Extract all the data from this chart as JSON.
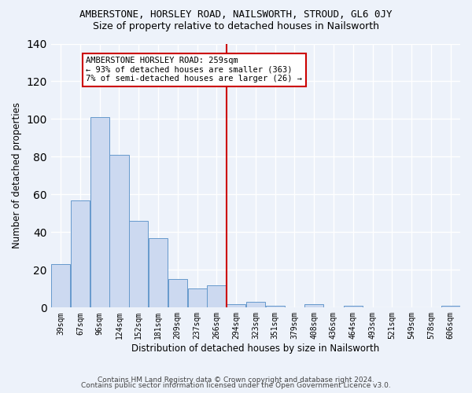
{
  "title": "AMBERSTONE, HORSLEY ROAD, NAILSWORTH, STROUD, GL6 0JY",
  "subtitle": "Size of property relative to detached houses in Nailsworth",
  "xlabel": "Distribution of detached houses by size in Nailsworth",
  "ylabel": "Number of detached properties",
  "bar_labels": [
    "39sqm",
    "67sqm",
    "96sqm",
    "124sqm",
    "152sqm",
    "181sqm",
    "209sqm",
    "237sqm",
    "266sqm",
    "294sqm",
    "323sqm",
    "351sqm",
    "379sqm",
    "408sqm",
    "436sqm",
    "464sqm",
    "493sqm",
    "521sqm",
    "549sqm",
    "578sqm",
    "606sqm"
  ],
  "bar_values": [
    23,
    57,
    101,
    81,
    46,
    37,
    15,
    10,
    12,
    2,
    3,
    1,
    0,
    2,
    0,
    1,
    0,
    0,
    0,
    0,
    1
  ],
  "bar_color": "#ccd9f0",
  "bar_edge_color": "#6699cc",
  "vline_x_index": 8,
  "vline_color": "#cc0000",
  "annotation_text": "AMBERSTONE HORSLEY ROAD: 259sqm\n← 93% of detached houses are smaller (363)\n7% of semi-detached houses are larger (26) →",
  "annotation_box_color": "#ffffff",
  "annotation_box_edge": "#cc0000",
  "ylim": [
    0,
    140
  ],
  "yticks": [
    0,
    20,
    40,
    60,
    80,
    100,
    120,
    140
  ],
  "footer_line1": "Contains HM Land Registry data © Crown copyright and database right 2024.",
  "footer_line2": "Contains public sector information licensed under the Open Government Licence v3.0.",
  "bg_color": "#edf2fa",
  "grid_color": "#ffffff"
}
